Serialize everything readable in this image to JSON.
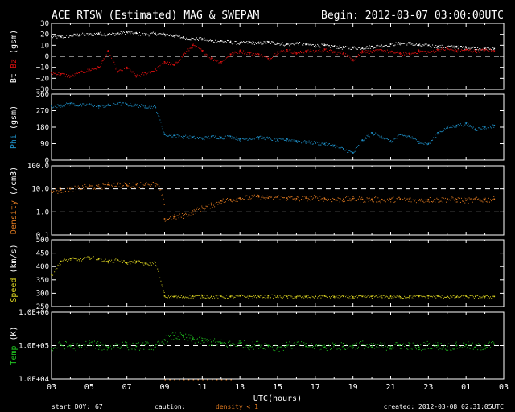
{
  "header": {
    "title": "ACE RTSW (Estimated) MAG & SWEPAM",
    "begin": "Begin: 2012-03-07 03:00:00UTC"
  },
  "footer": {
    "start_doy_label": "start DOY:",
    "start_doy_value": "67",
    "caution_label": "caution:",
    "caution_value": "density < 1",
    "created": "created: 2012-03-08 02:31:05UTC"
  },
  "colors": {
    "background": "#000000",
    "frame": "#ffffff",
    "bt": "#ffffff",
    "bz": "#e01010",
    "phi": "#1e90c8",
    "density": "#e07a20",
    "speed": "#d8d020",
    "temp": "#20c020",
    "caution": "#e07a20"
  },
  "chart_data": {
    "type": "scatter",
    "xlabel": "UTC(hours)",
    "x_tick_labels": [
      "03",
      "05",
      "07",
      "09",
      "11",
      "13",
      "15",
      "17",
      "19",
      "21",
      "23",
      "01",
      "03"
    ],
    "x_hours_range": [
      3,
      27
    ],
    "panels": [
      {
        "id": "bt-bz",
        "ylabel_parts": [
          "Bt",
          "Bz",
          "(gsm)"
        ],
        "ylim": [
          -30,
          30
        ],
        "yticks": [
          30,
          20,
          10,
          0,
          -10,
          -20,
          -30
        ],
        "ytick_labels": [
          "30",
          "20",
          "10",
          "0",
          "−10",
          "−20",
          "−30"
        ],
        "dashed_lines": [
          0
        ],
        "series": [
          {
            "name": "Bt",
            "color": "#ffffff",
            "x": [
              3,
              3.5,
              4,
              4.5,
              5,
              5.5,
              6,
              6.5,
              7,
              7.5,
              8,
              8.5,
              9,
              9.5,
              10,
              10.5,
              11,
              11.5,
              12,
              12.5,
              13,
              13.5,
              14,
              14.5,
              15,
              15.5,
              16,
              16.5,
              17,
              17.5,
              18,
              18.5,
              19,
              19.5,
              20,
              20.5,
              21,
              21.5,
              22,
              22.5,
              23,
              23.5,
              24,
              24.5,
              25,
              25.5,
              26,
              26.5
            ],
            "y": [
              18,
              18,
              19,
              20,
              20,
              21,
              20,
              21,
              22,
              21,
              20,
              21,
              20,
              19,
              17,
              16,
              16,
              14,
              14,
              13,
              12,
              13,
              12,
              13,
              12,
              11,
              12,
              11,
              10,
              10,
              9,
              8,
              8,
              8,
              9,
              10,
              11,
              12,
              12,
              10,
              10,
              9,
              9,
              9,
              8,
              8,
              7,
              7
            ]
          },
          {
            "name": "Bz",
            "color": "#e01010",
            "x": [
              3,
              3.5,
              4,
              4.5,
              5,
              5.5,
              6,
              6.5,
              7,
              7.5,
              8,
              8.5,
              9,
              9.5,
              10,
              10.5,
              11,
              11.5,
              12,
              12.5,
              13,
              13.5,
              14,
              14.5,
              15,
              15.5,
              16,
              16.5,
              17,
              17.5,
              18,
              18.5,
              19,
              19.5,
              20,
              20.5,
              21,
              21.5,
              22,
              22.5,
              23,
              23.5,
              24,
              24.5,
              25,
              25.5,
              26,
              26.5
            ],
            "y": [
              -15,
              -16,
              -18,
              -15,
              -12,
              -10,
              5,
              -14,
              -10,
              -18,
              -15,
              -12,
              -5,
              -8,
              2,
              10,
              5,
              -2,
              -5,
              2,
              5,
              3,
              2,
              -2,
              4,
              6,
              3,
              5,
              5,
              6,
              4,
              3,
              -3,
              5,
              4,
              6,
              4,
              3,
              2,
              5,
              4,
              6,
              7,
              5,
              6,
              5,
              6,
              5
            ]
          }
        ]
      },
      {
        "id": "phi",
        "ylabel_parts": [
          "Phi",
          "(gsm)"
        ],
        "ylim": [
          0,
          360
        ],
        "yticks": [
          360,
          270,
          180,
          90,
          0
        ],
        "ytick_labels": [
          "360",
          "270",
          "180",
          "90",
          "0"
        ],
        "dashed_lines": [],
        "series": [
          {
            "name": "Phi",
            "color": "#1e90c8",
            "x": [
              3,
              3.5,
              4,
              4.5,
              5,
              5.5,
              6,
              6.5,
              7,
              7.5,
              8,
              8.5,
              9,
              9.5,
              10,
              10.5,
              11,
              11.5,
              12,
              12.5,
              13,
              13.5,
              14,
              14.5,
              15,
              15.5,
              16,
              16.5,
              17,
              17.5,
              18,
              18.5,
              19,
              19.5,
              20,
              20.5,
              21,
              21.5,
              22,
              22.5,
              23,
              23.5,
              24,
              24.5,
              25,
              25.5,
              26,
              26.5
            ],
            "y": [
              295,
              300,
              310,
              300,
              305,
              295,
              300,
              310,
              305,
              300,
              295,
              290,
              140,
              135,
              130,
              125,
              120,
              130,
              125,
              130,
              115,
              120,
              125,
              120,
              110,
              115,
              105,
              100,
              95,
              90,
              80,
              60,
              40,
              110,
              150,
              130,
              100,
              140,
              130,
              100,
              90,
              150,
              180,
              190,
              200,
              170,
              180,
              190
            ]
          }
        ]
      },
      {
        "id": "density",
        "ylabel_parts": [
          "Density",
          "(/cm3)"
        ],
        "yscale": "log",
        "ylim": [
          0.1,
          100
        ],
        "yticks": [
          100,
          10,
          1,
          0.1
        ],
        "ytick_labels": [
          "100.0",
          "10.0",
          "1.0",
          "0.1"
        ],
        "dashed_lines": [
          10,
          1
        ],
        "series": [
          {
            "name": "Density",
            "color": "#e07a20",
            "x": [
              3,
              3.5,
              4,
              4.5,
              5,
              5.5,
              6,
              6.5,
              7,
              7.5,
              8,
              8.5,
              9,
              9.5,
              10,
              10.5,
              11,
              11.5,
              12,
              12.5,
              13,
              13.5,
              14,
              14.5,
              15,
              15.5,
              16,
              16.5,
              17,
              17.5,
              18,
              18.5,
              19,
              19.5,
              20,
              20.5,
              21,
              21.5,
              22,
              22.5,
              23,
              23.5,
              24,
              24.5,
              25,
              25.5,
              26,
              26.5
            ],
            "y": [
              8,
              9,
              10,
              11,
              13,
              12,
              15,
              16,
              14,
              15,
              16,
              17,
              0.5,
              0.6,
              0.7,
              1.0,
              1.5,
              2.0,
              3.0,
              3.5,
              4.0,
              4.2,
              4.5,
              4.0,
              4.5,
              4.0,
              3.8,
              4.0,
              4.2,
              3.8,
              3.5,
              3.6,
              3.8,
              3.5,
              3.6,
              3.4,
              3.5,
              3.6,
              3.4,
              3.2,
              3.5,
              3.4,
              3.6,
              3.5,
              3.2,
              3.4,
              3.5,
              3.6
            ]
          }
        ]
      },
      {
        "id": "speed",
        "ylabel_parts": [
          "Speed",
          "(km/s)"
        ],
        "ylim": [
          250,
          500
        ],
        "yticks": [
          500,
          450,
          400,
          350,
          300,
          250
        ],
        "ytick_labels": [
          "500",
          "450",
          "400",
          "350",
          "300",
          "250"
        ],
        "dashed_lines": [],
        "series": [
          {
            "name": "Speed",
            "color": "#d8d020",
            "x": [
              3,
              3.5,
              4,
              4.5,
              5,
              5.5,
              6,
              6.5,
              7,
              7.5,
              8,
              8.5,
              9,
              9.5,
              10,
              10.5,
              11,
              11.5,
              12,
              12.5,
              13,
              13.5,
              14,
              14.5,
              15,
              15.5,
              16,
              16.5,
              17,
              17.5,
              18,
              18.5,
              19,
              19.5,
              20,
              20.5,
              21,
              21.5,
              22,
              22.5,
              23,
              23.5,
              24,
              24.5,
              25,
              25.5,
              26,
              26.5
            ],
            "y": [
              370,
              420,
              430,
              425,
              435,
              430,
              420,
              425,
              415,
              420,
              410,
              415,
              290,
              288,
              287,
              289,
              290,
              288,
              289,
              287,
              290,
              289,
              288,
              290,
              289,
              288,
              287,
              288,
              289,
              290,
              288,
              289,
              287,
              288,
              289,
              290,
              288,
              287,
              289,
              288,
              290,
              289,
              288,
              287,
              289,
              288,
              287,
              288
            ]
          }
        ]
      },
      {
        "id": "temp",
        "ylabel_parts": [
          "Temp",
          "(K)"
        ],
        "yscale": "log",
        "ylim": [
          10000,
          1000000
        ],
        "yticks": [
          1000000,
          100000,
          10000
        ],
        "ytick_labels": [
          "1.0E+06",
          "1.0E+05",
          "1.0E+04"
        ],
        "dashed_lines": [
          100000
        ],
        "series": [
          {
            "name": "Temp",
            "color": "#20c020",
            "x": [
              3,
              3.5,
              4,
              4.5,
              5,
              5.5,
              6,
              6.5,
              7,
              7.5,
              8,
              8.5,
              9,
              9.5,
              10,
              10.5,
              11,
              11.5,
              12,
              12.5,
              13,
              13.5,
              14,
              14.5,
              15,
              15.5,
              16,
              16.5,
              17,
              17.5,
              18,
              18.5,
              19,
              19.5,
              20,
              20.5,
              21,
              21.5,
              22,
              22.5,
              23,
              23.5,
              24,
              24.5,
              25,
              25.5,
              26,
              26.5
            ],
            "y": [
              80000,
              110000,
              100000,
              90000,
              120000,
              100000,
              90000,
              110000,
              100000,
              95000,
              105000,
              90000,
              150000,
              200000,
              180000,
              160000,
              140000,
              130000,
              120000,
              110000,
              120000,
              100000,
              110000,
              100000,
              90000,
              100000,
              110000,
              95000,
              100000,
              90000,
              105000,
              95000,
              100000,
              110000,
              90000,
              100000,
              95000,
              105000,
              100000,
              90000,
              110000,
              100000,
              95000,
              100000,
              105000,
              90000,
              100000,
              110000
            ]
          }
        ]
      }
    ]
  }
}
